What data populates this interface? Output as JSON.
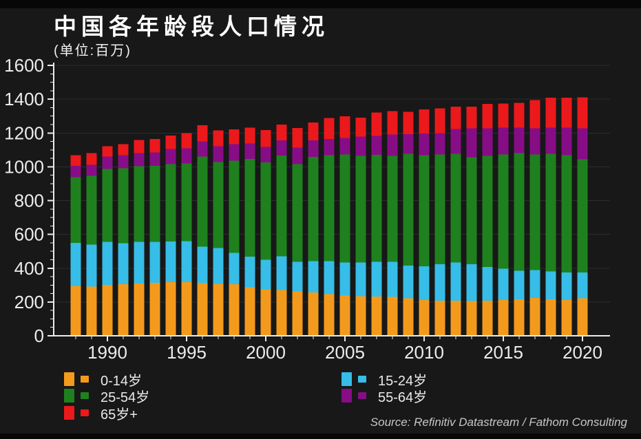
{
  "header": {
    "title": "中国各年龄段人口情况",
    "subtitle": "(单位:百万)"
  },
  "source": {
    "text": "Source: Refinitiv Datastream / Fathom Consulting"
  },
  "colors": {
    "background": "#181818",
    "axis": "#ececec",
    "gridline": "#2d2d2d",
    "age_0_14": "#F39A1D",
    "age_15_24": "#36BDE8",
    "age_25_54": "#1E811E",
    "age_55_64": "#870D87",
    "age_65_plus": "#EB191B"
  },
  "legend": {
    "left": [
      {
        "label": "0-14岁",
        "color": "#F39A1D"
      },
      {
        "label": "25-54岁",
        "color": "#1E811E"
      },
      {
        "label": "65岁+",
        "color": "#EB191B"
      }
    ],
    "right": [
      {
        "label": "15-24岁",
        "color": "#36BDE8"
      },
      {
        "label": "55-64岁",
        "color": "#870D87"
      }
    ]
  },
  "chart_data": {
    "type": "bar",
    "stacked": true,
    "title": "中国各年龄段人口情况",
    "subtitle": "(单位:百万)",
    "unit": "百万 (millions of people)",
    "grid": "horizontal-faint",
    "legend_position": "bottom",
    "x": [
      1988,
      1989,
      1990,
      1991,
      1992,
      1993,
      1994,
      1995,
      1996,
      1997,
      1998,
      1999,
      2000,
      2001,
      2002,
      2003,
      2004,
      2005,
      2006,
      2007,
      2008,
      2009,
      2010,
      2011,
      2012,
      2013,
      2014,
      2015,
      2016,
      2017,
      2018,
      2019,
      2020
    ],
    "xticks_labeled": [
      1990,
      1995,
      2000,
      2005,
      2010,
      2015,
      2020
    ],
    "ylim": [
      0,
      1600
    ],
    "ytick_step": 200,
    "ytick_minor_step": 50,
    "series": [
      {
        "name": "0-14岁",
        "color": "#F39A1D",
        "values": [
          295,
          292,
          302,
          306,
          310,
          314,
          318,
          318,
          312,
          308,
          305,
          288,
          274,
          270,
          262,
          257,
          246,
          238,
          234,
          233,
          230,
          221,
          212,
          208,
          208,
          205,
          208,
          212,
          216,
          224,
          216,
          212,
          222
        ]
      },
      {
        "name": "15-24岁",
        "color": "#36BDE8",
        "values": [
          255,
          248,
          253,
          242,
          245,
          242,
          240,
          242,
          216,
          212,
          185,
          180,
          176,
          200,
          176,
          184,
          195,
          196,
          199,
          204,
          207,
          195,
          200,
          216,
          225,
          219,
          200,
          184,
          168,
          164,
          164,
          163,
          153
        ]
      },
      {
        "name": "25-54岁",
        "color": "#1E811E",
        "values": [
          388,
          406,
          432,
          443,
          449,
          449,
          458,
          460,
          532,
          508,
          546,
          578,
          575,
          596,
          578,
          618,
          627,
          639,
          632,
          633,
          627,
          661,
          656,
          649,
          644,
          633,
          657,
          677,
          697,
          685,
          697,
          694,
          669
        ]
      },
      {
        "name": "55-64岁",
        "color": "#870D87",
        "values": [
          67,
          66,
          73,
          77,
          76,
          80,
          89,
          90,
          90,
          94,
          98,
          92,
          93,
          91,
          98,
          98,
          97,
          98,
          114,
          112,
          126,
          116,
          128,
          127,
          147,
          171,
          163,
          159,
          151,
          155,
          155,
          163,
          184
        ]
      },
      {
        "name": "65岁+",
        "color": "#EB191B",
        "values": [
          63,
          68,
          62,
          66,
          78,
          79,
          79,
          89,
          95,
          93,
          87,
          94,
          99,
          93,
          115,
          106,
          123,
          128,
          111,
          140,
          139,
          133,
          144,
          146,
          131,
          127,
          143,
          143,
          147,
          167,
          176,
          176,
          183
        ]
      }
    ]
  }
}
